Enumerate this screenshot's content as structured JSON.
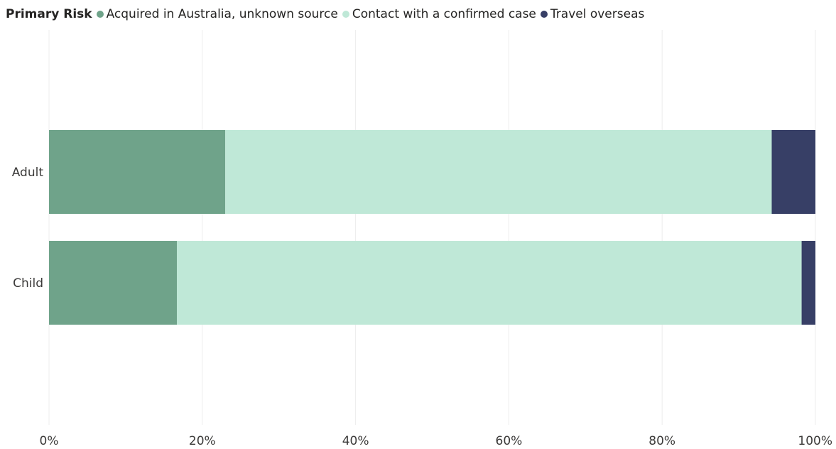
{
  "legend": {
    "title": "Primary Risk",
    "items": [
      {
        "label": "Acquired in Australia, unknown source",
        "color": "#6fa38a"
      },
      {
        "label": "Contact with a confirmed case",
        "color": "#bfe8d7"
      },
      {
        "label": "Travel overseas",
        "color": "#373f66"
      }
    ]
  },
  "chart_data": {
    "type": "bar",
    "orientation": "horizontal",
    "stacking": "100%",
    "categories": [
      "Adult",
      "Child"
    ],
    "series": [
      {
        "name": "Acquired in Australia, unknown source",
        "color": "#6fa38a",
        "values": [
          23,
          16.7
        ]
      },
      {
        "name": "Contact with a confirmed case",
        "color": "#bfe8d7",
        "values": [
          71.3,
          81.5
        ]
      },
      {
        "name": "Travel overseas",
        "color": "#373f66",
        "values": [
          5.7,
          1.8
        ]
      }
    ],
    "xlim": [
      0,
      100
    ],
    "x_ticks": [
      "0%",
      "20%",
      "40%",
      "60%",
      "80%",
      "100%"
    ],
    "grid": "vertical",
    "legend_position": "top-left"
  }
}
